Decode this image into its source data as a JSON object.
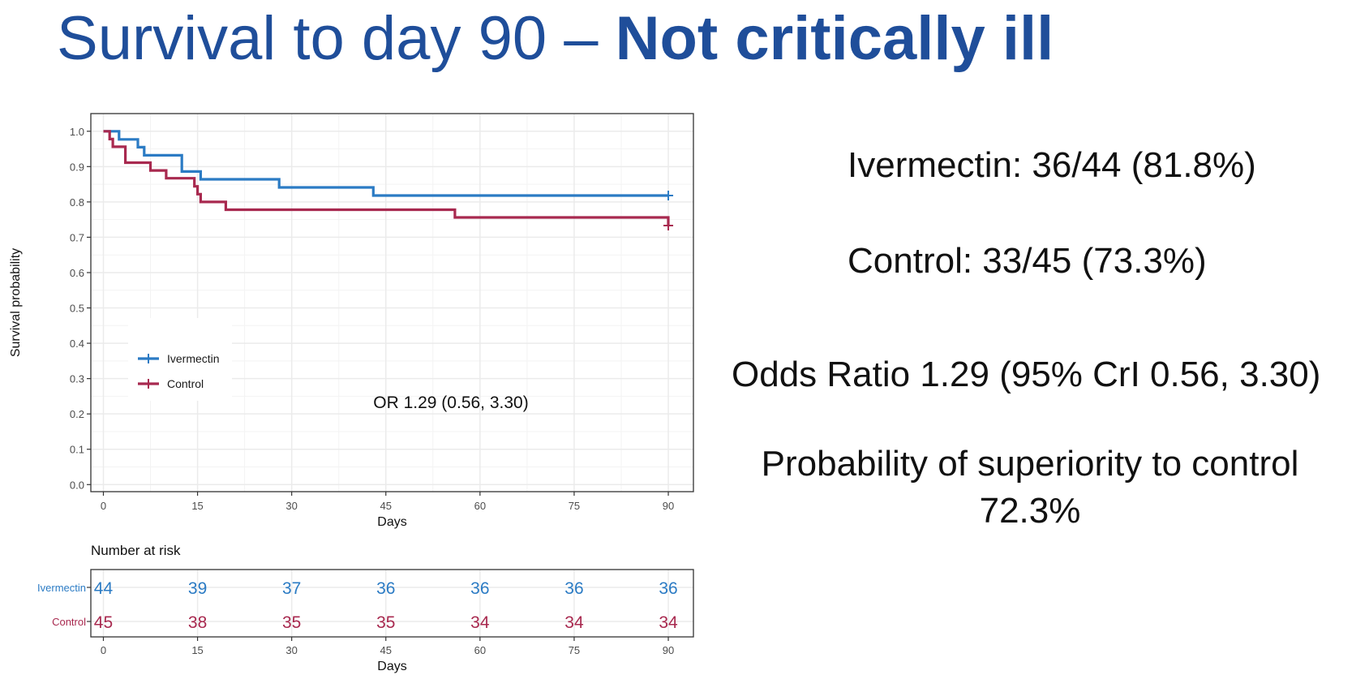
{
  "slide": {
    "title_regular": "Survival to day 90 – ",
    "title_bold": "Not critically ill"
  },
  "colors": {
    "title": "#1f4e9a",
    "ivermectin": "#2b7bc4",
    "control": "#a8294f",
    "panel_bg": "#ffffff",
    "grid": "#ebebeb"
  },
  "chart_data": {
    "type": "line",
    "subtype": "kaplan-meier",
    "xlabel": "Days",
    "ylabel": "Survival probability",
    "xlim": [
      -2,
      94
    ],
    "ylim": [
      -0.02,
      1.05
    ],
    "xticks": [
      0,
      15,
      30,
      45,
      60,
      75,
      90
    ],
    "xtick_labels": [
      "0",
      "15",
      "30",
      "45",
      "60",
      "75",
      "90"
    ],
    "yticks": [
      0,
      0.1,
      0.2,
      0.3,
      0.4,
      0.5,
      0.6,
      0.7,
      0.8,
      0.9,
      1.0
    ],
    "ytick_labels": [
      "0.0",
      "0.1",
      "0.2",
      "0.3",
      "0.4",
      "0.5",
      "0.6",
      "0.7",
      "0.8",
      "0.9",
      "1.0"
    ],
    "grid": true,
    "legend_position": "left",
    "annotation": "OR 1.29 (0.56, 3.30)",
    "series": [
      {
        "name": "Ivermectin",
        "color": "#2b7bc4",
        "x": [
          0,
          2.5,
          5.5,
          6.5,
          12.5,
          15.5,
          28,
          43,
          90
        ],
        "y": [
          1.0,
          0.977,
          0.955,
          0.932,
          0.886,
          0.864,
          0.841,
          0.818,
          0.818
        ],
        "censor": [
          [
            90,
            0.818
          ]
        ]
      },
      {
        "name": "Control",
        "color": "#a8294f",
        "x": [
          0,
          1,
          1.5,
          3.5,
          7.5,
          10,
          14.5,
          15,
          15.5,
          19.5,
          56,
          90
        ],
        "y": [
          1.0,
          0.978,
          0.956,
          0.911,
          0.889,
          0.867,
          0.844,
          0.822,
          0.8,
          0.778,
          0.756,
          0.733
        ],
        "censor": [
          [
            90,
            0.733
          ]
        ]
      }
    ],
    "risk_table": {
      "title": "Number at risk",
      "xlabel": "Days",
      "times": [
        0,
        15,
        30,
        45,
        60,
        75,
        90
      ],
      "rows": [
        {
          "name": "Ivermectin",
          "color": "#2b7bc4",
          "values": [
            "44",
            "39",
            "37",
            "36",
            "36",
            "36",
            "36"
          ]
        },
        {
          "name": "Control",
          "color": "#a8294f",
          "values": [
            "45",
            "38",
            "35",
            "35",
            "34",
            "34",
            "34"
          ]
        }
      ]
    }
  },
  "stats": {
    "ivermectin": "Ivermectin:  36/44 (81.8%)",
    "control": "Control:    33/45 (73.3%)",
    "odds_ratio": "Odds Ratio 1.29 (95% CrI 0.56, 3.30)",
    "probability_line1": "Probability of superiority to control",
    "probability_line2": "72.3%"
  }
}
